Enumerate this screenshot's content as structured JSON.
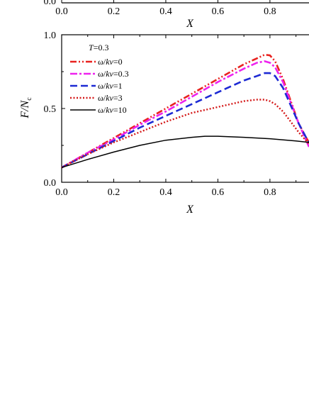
{
  "top_fragment": {
    "y_tick_label": "0.0",
    "x_tick_labels": [
      "0.0",
      "0.2",
      "0.4",
      "0.6",
      "0.8"
    ],
    "xlabel": "X"
  },
  "chart_data": {
    "type": "line",
    "title": "",
    "xlabel": "X",
    "ylabel": "F/N",
    "ylabel_subscript": "c",
    "xlim": [
      0.0,
      0.95
    ],
    "ylim": [
      0.0,
      1.0
    ],
    "x_ticks": [
      0.0,
      0.2,
      0.4,
      0.6,
      0.8
    ],
    "x_tick_labels": [
      "0.0",
      "0.2",
      "0.4",
      "0.6",
      "0.8"
    ],
    "y_ticks": [
      0.0,
      0.5,
      1.0
    ],
    "y_tick_labels": [
      "0.0",
      "0.5",
      "1.0"
    ],
    "grid": false,
    "legend_position": "top-left",
    "legend_title": "T=0.3",
    "series": [
      {
        "name": "ω/kv=0",
        "color": "#e8221f",
        "dash": "dash-dot-dot",
        "x": [
          0.0,
          0.1,
          0.2,
          0.3,
          0.4,
          0.5,
          0.6,
          0.7,
          0.75,
          0.78,
          0.8,
          0.82,
          0.85,
          0.88,
          0.91,
          0.94,
          0.95
        ],
        "y": [
          0.1,
          0.2,
          0.3,
          0.4,
          0.5,
          0.6,
          0.7,
          0.8,
          0.84,
          0.865,
          0.86,
          0.82,
          0.7,
          0.55,
          0.4,
          0.3,
          0.27
        ]
      },
      {
        "name": "ω/kv=0.3",
        "color": "#ee22ee",
        "dash": "dash-dot",
        "x": [
          0.0,
          0.1,
          0.2,
          0.3,
          0.4,
          0.5,
          0.6,
          0.7,
          0.75,
          0.78,
          0.8,
          0.82,
          0.85,
          0.88,
          0.91,
          0.94,
          0.95
        ],
        "y": [
          0.1,
          0.2,
          0.29,
          0.39,
          0.48,
          0.58,
          0.68,
          0.77,
          0.81,
          0.82,
          0.81,
          0.78,
          0.68,
          0.54,
          0.4,
          0.28,
          0.24
        ]
      },
      {
        "name": "ω/kv=1",
        "color": "#1d2ad4",
        "dash": "dash",
        "x": [
          0.0,
          0.1,
          0.2,
          0.3,
          0.4,
          0.5,
          0.6,
          0.7,
          0.75,
          0.78,
          0.8,
          0.82,
          0.85,
          0.88,
          0.91,
          0.94,
          0.95
        ],
        "y": [
          0.1,
          0.19,
          0.28,
          0.37,
          0.45,
          0.53,
          0.61,
          0.69,
          0.72,
          0.74,
          0.74,
          0.72,
          0.64,
          0.52,
          0.4,
          0.3,
          0.27
        ]
      },
      {
        "name": "ω/kv=3",
        "color": "#d41a1a",
        "dash": "dot",
        "x": [
          0.0,
          0.1,
          0.2,
          0.3,
          0.4,
          0.5,
          0.6,
          0.7,
          0.75,
          0.78,
          0.8,
          0.82,
          0.85,
          0.88,
          0.91,
          0.94,
          0.95
        ],
        "y": [
          0.1,
          0.19,
          0.27,
          0.34,
          0.41,
          0.47,
          0.51,
          0.55,
          0.56,
          0.56,
          0.55,
          0.53,
          0.48,
          0.41,
          0.34,
          0.28,
          0.26
        ]
      },
      {
        "name": "ω/kv=10",
        "color": "#000000",
        "dash": "solid",
        "x": [
          0.0,
          0.1,
          0.2,
          0.3,
          0.4,
          0.5,
          0.55,
          0.6,
          0.7,
          0.8,
          0.9,
          0.95
        ],
        "y": [
          0.1,
          0.155,
          0.205,
          0.25,
          0.285,
          0.305,
          0.312,
          0.312,
          0.305,
          0.295,
          0.28,
          0.27
        ]
      }
    ]
  }
}
